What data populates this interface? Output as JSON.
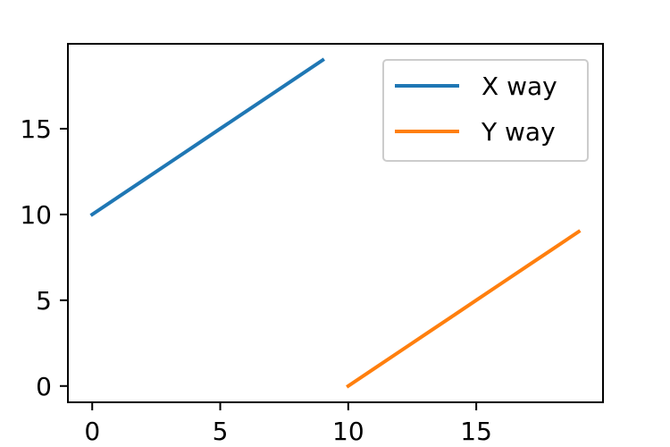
{
  "chart_data": {
    "type": "line",
    "title": "",
    "xlabel": "",
    "ylabel": "",
    "xlim": [
      -0.95,
      19.95
    ],
    "ylim": [
      -0.95,
      19.95
    ],
    "xticks": [
      0,
      5,
      10,
      15
    ],
    "yticks": [
      0,
      5,
      10,
      15
    ],
    "grid": false,
    "legend_position": "upper right",
    "series": [
      {
        "name": "X way",
        "color": "#1f77b4",
        "x": [
          0,
          1,
          2,
          3,
          4,
          5,
          6,
          7,
          8,
          9
        ],
        "y": [
          10,
          11,
          12,
          13,
          14,
          15,
          16,
          17,
          18,
          19
        ]
      },
      {
        "name": "Y way",
        "color": "#ff7f0e",
        "x": [
          10,
          11,
          12,
          13,
          14,
          15,
          16,
          17,
          18,
          19
        ],
        "y": [
          0,
          1,
          2,
          3,
          4,
          5,
          6,
          7,
          8,
          9
        ]
      }
    ]
  }
}
